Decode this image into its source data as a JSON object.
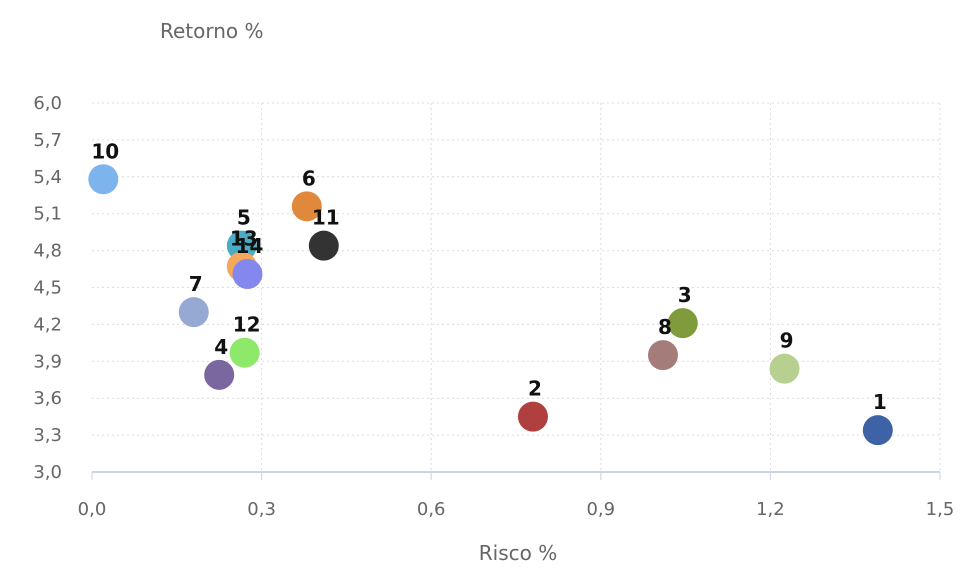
{
  "chart_data": {
    "type": "scatter",
    "title": "",
    "xlabel": "Risco %",
    "ylabel": "Retorno %",
    "xlim": [
      0.0,
      1.5
    ],
    "ylim": [
      3.0,
      6.0
    ],
    "x_ticks": [
      "0,0",
      "0,3",
      "0,6",
      "0,9",
      "1,2",
      "1,5"
    ],
    "y_ticks": [
      "3,0",
      "3,3",
      "3,6",
      "3,9",
      "4,2",
      "4,5",
      "4,8",
      "5,1",
      "5,4",
      "5,7",
      "6,0"
    ],
    "grid": true,
    "points": [
      {
        "label": "1",
        "x": 1.39,
        "y": 3.34,
        "color": "#3d63a6"
      },
      {
        "label": "2",
        "x": 0.78,
        "y": 3.45,
        "color": "#b0403f"
      },
      {
        "label": "3",
        "x": 1.045,
        "y": 4.21,
        "color": "#7f9b3c"
      },
      {
        "label": "4",
        "x": 0.225,
        "y": 3.79,
        "color": "#7a67a0"
      },
      {
        "label": "5",
        "x": 0.265,
        "y": 4.84,
        "color": "#4bacc6"
      },
      {
        "label": "6",
        "x": 0.38,
        "y": 5.16,
        "color": "#e0883b"
      },
      {
        "label": "7",
        "x": 0.18,
        "y": 4.3,
        "color": "#96a9d2"
      },
      {
        "label": "8",
        "x": 1.01,
        "y": 3.95,
        "color": "#a47c7a"
      },
      {
        "label": "9",
        "x": 1.225,
        "y": 3.84,
        "color": "#b8d08f"
      },
      {
        "label": "10",
        "x": 0.02,
        "y": 5.38,
        "color": "#7db4ee"
      },
      {
        "label": "11",
        "x": 0.41,
        "y": 4.84,
        "color": "#333333"
      },
      {
        "label": "12",
        "x": 0.27,
        "y": 3.97,
        "color": "#8ee86a"
      },
      {
        "label": "13",
        "x": 0.265,
        "y": 4.67,
        "color": "#f5a85a"
      },
      {
        "label": "14",
        "x": 0.275,
        "y": 4.61,
        "color": "#8487ee"
      }
    ]
  }
}
